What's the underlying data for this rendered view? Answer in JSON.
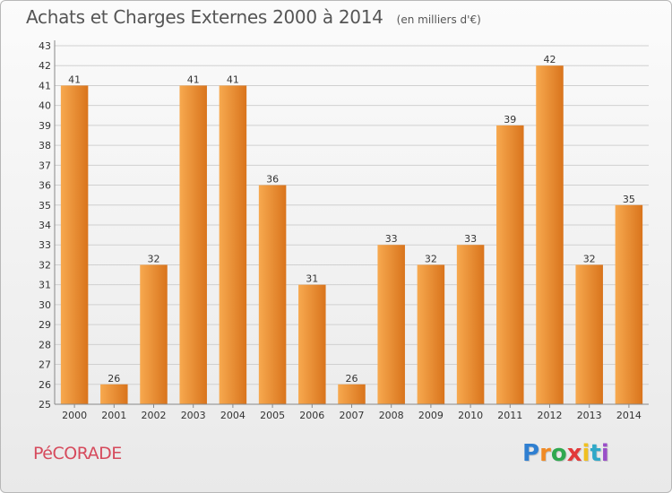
{
  "title": "Achats et Charges Externes 2000 à 2014",
  "unit": "(en milliers d'€)",
  "commune": "PéCORADE",
  "logo": {
    "letters": [
      "P",
      "r",
      "o",
      "x",
      "i",
      "t",
      "i"
    ],
    "colors": [
      "#2f7fd1",
      "#f08a24",
      "#2fa84f",
      "#e23a3a",
      "#f0c020",
      "#2fa8c8",
      "#9a4fc8"
    ]
  },
  "colors": {
    "bar_light": "#f7a94f",
    "bar_dark": "#d9741c",
    "grid": "#d0d0d0",
    "axis_text": "#333333",
    "title_text": "#555555",
    "commune_text": "#d64a5c"
  },
  "chart_data": {
    "type": "bar",
    "title": "Achats et Charges Externes 2000 à 2014",
    "subtitle": "(en milliers d'€)",
    "categories": [
      "2000",
      "2001",
      "2002",
      "2003",
      "2004",
      "2005",
      "2006",
      "2007",
      "2008",
      "2009",
      "2010",
      "2011",
      "2012",
      "2013",
      "2014"
    ],
    "values": [
      41,
      26,
      32,
      41,
      41,
      36,
      31,
      26,
      33,
      32,
      33,
      39,
      42,
      32,
      35
    ],
    "xlabel": "",
    "ylabel": "",
    "ylim": [
      25,
      43
    ],
    "yticks": [
      25,
      26,
      27,
      28,
      29,
      30,
      31,
      32,
      33,
      34,
      35,
      36,
      37,
      38,
      39,
      40,
      41,
      42,
      43
    ],
    "grid": true,
    "legend": "none"
  }
}
